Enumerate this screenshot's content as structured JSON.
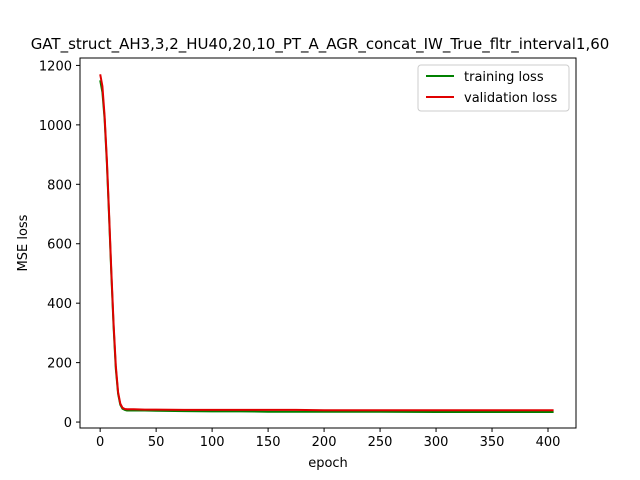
{
  "chart_data": {
    "type": "line",
    "title": "GAT_struct_AH3,3,2_HU40,20,10_PT_A_AGR_concat_IW_True_fltr_interval1,60",
    "xlabel": "epoch",
    "ylabel": "MSE loss",
    "xlim": [
      -18,
      425
    ],
    "ylim": [
      -20,
      1225
    ],
    "xticks": [
      0,
      50,
      100,
      150,
      200,
      250,
      300,
      350,
      400
    ],
    "yticks": [
      0,
      200,
      400,
      600,
      800,
      1000,
      1200
    ],
    "grid": false,
    "legend_position": "top-right",
    "series": [
      {
        "name": "training loss",
        "color": "#008000",
        "x": [
          0,
          2,
          4,
          6,
          8,
          10,
          12,
          14,
          16,
          18,
          20,
          22,
          24,
          26,
          30,
          40,
          50,
          75,
          100,
          125,
          150,
          175,
          200,
          250,
          300,
          350,
          405
        ],
        "y": [
          1150,
          1110,
          1020,
          870,
          690,
          500,
          320,
          180,
          95,
          58,
          45,
          41,
          39,
          39,
          39,
          39,
          38,
          37,
          36,
          36,
          35,
          35,
          35,
          35,
          34,
          34,
          34
        ]
      },
      {
        "name": "validation loss",
        "color": "#e00000",
        "x": [
          0,
          2,
          4,
          6,
          8,
          10,
          12,
          14,
          16,
          18,
          20,
          22,
          24,
          26,
          30,
          40,
          50,
          75,
          100,
          125,
          150,
          175,
          200,
          250,
          300,
          350,
          405
        ],
        "y": [
          1170,
          1130,
          1030,
          880,
          700,
          510,
          330,
          190,
          100,
          62,
          48,
          44,
          43,
          43,
          43,
          42,
          42,
          41,
          41,
          41,
          41,
          41,
          40,
          40,
          40,
          40,
          40
        ]
      }
    ]
  }
}
